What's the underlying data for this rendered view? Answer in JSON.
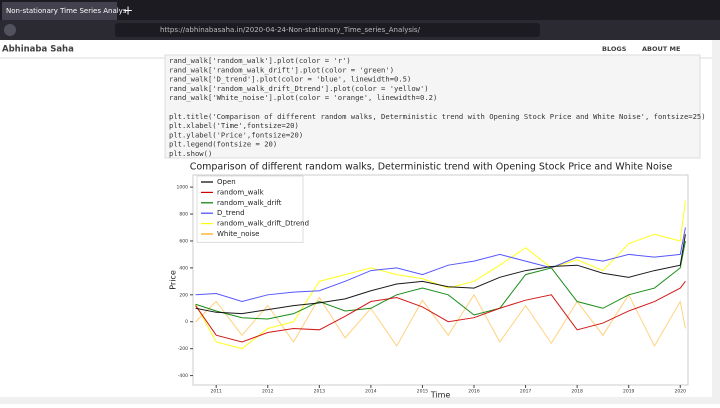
{
  "browser": {
    "tab_title": "Non-stationary Time Series Analys",
    "url": "https://abhinabasaha.in/2020-04-24-Non-stationary_Time_series_Analysis/"
  },
  "header": {
    "site_name": "Abhinaba Saha",
    "nav": [
      "BLOGS",
      "ABOUT ME"
    ]
  },
  "code": {
    "blocks": [
      [
        "rand_walk['random_walk'].plot(color = 'r')",
        "rand_walk['random_walk_drift'].plot(color = 'green')",
        "rand_walk['D_trend'].plot(color = 'blue', linewidth=0.5)",
        "rand_walk['random_walk_drift_Dtrend'].plot(color = 'yellow')",
        "rand_walk['White_noise'].plot(color = 'orange', linewidth=0.2)"
      ],
      [
        "plt.title('Comparison of different random walks, Deterministic trend with Opening Stock Price and White Noise', fontsize=25)",
        "plt.xlabel('Time',fontsize=20)",
        "plt.ylabel('Price',fontsize=20)",
        "plt.legend(fontsize = 20)",
        "plt.show()"
      ]
    ]
  },
  "chart_data": {
    "type": "line",
    "title": "Comparison of different random walks, Deterministic trend with Opening Stock Price and White Noise",
    "x_label": "Time",
    "y_label": "Price",
    "x": [
      2010.6,
      2011,
      2011.5,
      2012,
      2012.5,
      2013,
      2013.5,
      2014,
      2014.5,
      2015,
      2015.5,
      2016,
      2016.5,
      2017,
      2017.5,
      2018,
      2018.5,
      2019,
      2019.5,
      2020,
      2020.1
    ],
    "series": [
      {
        "name": "Open",
        "color": "#000000",
        "values": [
          100,
          70,
          60,
          90,
          120,
          140,
          170,
          230,
          280,
          300,
          260,
          250,
          330,
          380,
          410,
          420,
          360,
          330,
          380,
          420,
          650
        ]
      },
      {
        "name": "random_walk",
        "color": "#cc0000",
        "values": [
          120,
          -100,
          -150,
          -80,
          -50,
          -60,
          40,
          150,
          180,
          110,
          0,
          30,
          100,
          160,
          200,
          -60,
          -10,
          80,
          150,
          250,
          300
        ]
      },
      {
        "name": "random_walk_drift",
        "color": "#008000",
        "values": [
          130,
          80,
          30,
          20,
          60,
          150,
          80,
          100,
          200,
          250,
          200,
          50,
          100,
          350,
          400,
          150,
          100,
          200,
          250,
          400,
          600
        ]
      },
      {
        "name": "D_trend",
        "color": "#4444ff",
        "values": [
          200,
          210,
          150,
          200,
          220,
          230,
          300,
          380,
          400,
          350,
          420,
          450,
          500,
          450,
          400,
          480,
          450,
          500,
          480,
          500,
          700
        ]
      },
      {
        "name": "random_walk_drift_Dtrend",
        "color": "#ffff00",
        "values": [
          130,
          -150,
          -200,
          -50,
          0,
          300,
          350,
          400,
          350,
          320,
          250,
          300,
          420,
          550,
          400,
          460,
          380,
          580,
          650,
          600,
          900
        ]
      },
      {
        "name": "White_noise",
        "color": "#ffa500",
        "values": [
          0,
          150,
          -100,
          120,
          -150,
          180,
          -120,
          100,
          -180,
          160,
          -100,
          200,
          -150,
          120,
          -160,
          150,
          -100,
          200,
          -180,
          150,
          -50
        ]
      }
    ],
    "xlim": [
      2010.55,
      2020.15
    ],
    "ylim": [
      -470,
      1090
    ],
    "xticks": [
      2011,
      2012,
      2013,
      2014,
      2015,
      2016,
      2017,
      2018,
      2019,
      2020
    ],
    "yticks": [
      1000,
      800,
      600,
      400,
      200,
      0,
      -200,
      -400
    ],
    "legend": "upper left"
  }
}
